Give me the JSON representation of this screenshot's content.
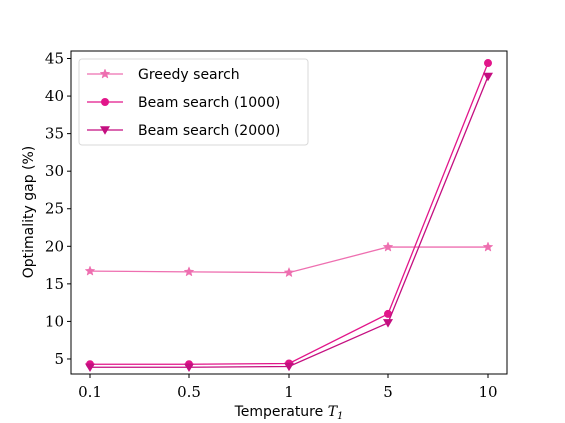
{
  "chart_data": {
    "type": "line",
    "categories": [
      "0.1",
      "0.5",
      "1",
      "5",
      "10"
    ],
    "xlabel": "Temperature ",
    "xlabel_math": "T",
    "xlabel_sub": "1",
    "ylabel": "Optimality gap (%)",
    "ylim": [
      3,
      46
    ],
    "yticks": [
      5,
      10,
      15,
      20,
      25,
      30,
      35,
      40,
      45
    ],
    "legend_position": "top-left",
    "grid": false,
    "series": [
      {
        "name": "Greedy search",
        "color": "#ee6fb0",
        "marker": "star",
        "values": [
          16.7,
          16.6,
          16.5,
          19.9,
          19.9
        ]
      },
      {
        "name": "Beam search (1000)",
        "color": "#e2168a",
        "marker": "circle",
        "values": [
          4.3,
          4.3,
          4.4,
          11.0,
          44.4
        ]
      },
      {
        "name": "Beam search (2000)",
        "color": "#c40f80",
        "marker": "triangle-down",
        "values": [
          3.9,
          3.9,
          4.0,
          9.8,
          42.6
        ]
      }
    ]
  }
}
